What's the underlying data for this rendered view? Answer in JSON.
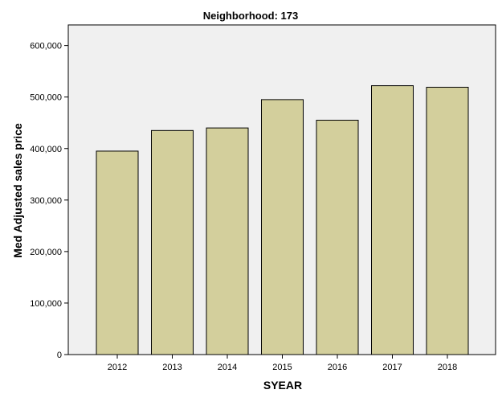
{
  "chart_data": {
    "type": "bar",
    "title": "Neighborhood: 173",
    "xlabel": "SYEAR",
    "ylabel": "Med Adjusted sales price",
    "categories": [
      "2012",
      "2013",
      "2014",
      "2015",
      "2016",
      "2017",
      "2018"
    ],
    "values": [
      395000,
      435000,
      440000,
      495000,
      455000,
      522000,
      519000
    ],
    "ylim": [
      0,
      640000
    ],
    "yticks": [
      0,
      100000,
      200000,
      300000,
      400000,
      500000,
      600000
    ],
    "ytick_labels": [
      "0",
      "100,000",
      "200,000",
      "300,000",
      "400,000",
      "500,000",
      "600,000"
    ],
    "grid": false,
    "legend": "none",
    "colors": {
      "bar_fill": "#d3cf9c",
      "bar_stroke": "#000000",
      "plot_background": "#f0f0f0"
    }
  }
}
